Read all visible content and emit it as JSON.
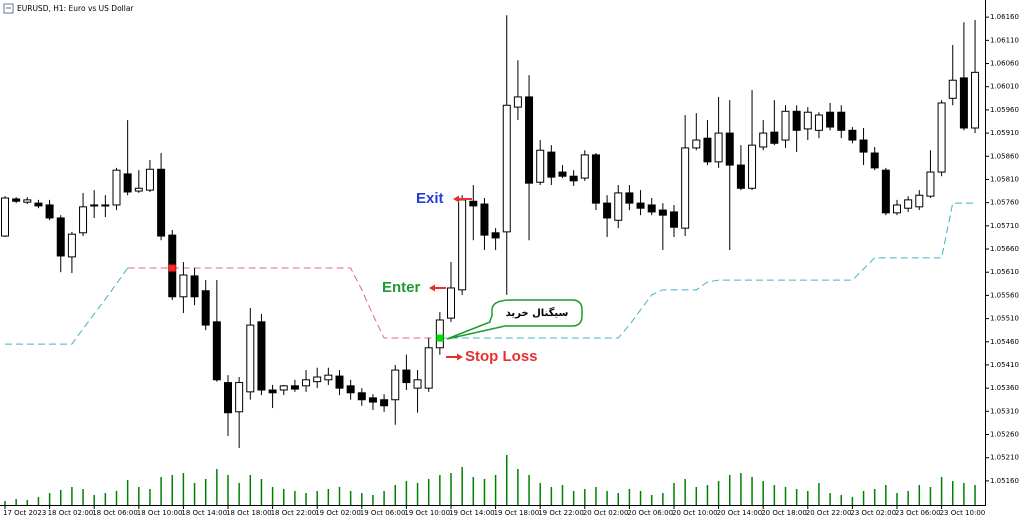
{
  "chart_data": {
    "type": "candlestick",
    "title": "EURUSD, H1:  Euro vs US Dollar",
    "categories": [
      "17 Oct 2023",
      null,
      null,
      null,
      "18 Oct 02:00",
      null,
      null,
      null,
      "18 Oct 06:00",
      null,
      null,
      null,
      "18 Oct 10:00",
      null,
      null,
      null,
      "18 Oct 14:00",
      null,
      null,
      null,
      "18 Oct 18:00",
      null,
      null,
      null,
      "18 Oct 22:00",
      null,
      null,
      null,
      "19 Oct 02:00",
      null,
      null,
      null,
      "19 Oct 06:00",
      null,
      null,
      null,
      "19 Oct 10:00",
      null,
      null,
      null,
      "19 Oct 14:00",
      null,
      null,
      null,
      "19 Oct 18:00",
      null,
      null,
      null,
      "19 Oct 22:00",
      null,
      null,
      null,
      "20 Oct 02:00",
      null,
      null,
      null,
      "20 Oct 06:00",
      null,
      null,
      null,
      "20 Oct 10:00",
      null,
      null,
      null,
      "20 Oct 14:00",
      null,
      null,
      null,
      "20 Oct 18:00",
      null,
      null,
      null,
      "20 Oct 22:00",
      null,
      null,
      null,
      "23 Oct 02:00",
      null,
      null,
      null,
      "23 Oct 06:00",
      null,
      null,
      null,
      "23 Oct 10:00",
      null,
      null,
      null
    ],
    "open": [
      1.05688,
      1.05768,
      1.05761,
      1.05759,
      1.05755,
      1.05727,
      1.05643,
      1.05695,
      1.05755,
      1.05753,
      1.05755,
      1.05822,
      1.05785,
      1.05787,
      1.05832,
      1.0569,
      1.05557,
      1.05602,
      1.0557,
      1.05503,
      1.05372,
      1.05309,
      1.05352,
      1.05503,
      1.05356,
      1.05356,
      1.05365,
      1.05365,
      1.05374,
      1.05378,
      1.05386,
      1.05365,
      1.0535,
      1.05339,
      1.05335,
      1.05335,
      1.05399,
      1.0536,
      1.0536,
      1.05447,
      1.05511,
      1.05572,
      1.05763,
      1.05757,
      1.05695,
      1.05697,
      1.05966,
      1.05988,
      1.05804,
      1.05869,
      1.05826,
      1.05817,
      1.05813,
      1.05863,
      1.05759,
      1.05722,
      1.05781,
      1.05759,
      1.05755,
      1.05744,
      1.0574,
      1.05705,
      1.05878,
      1.05899,
      1.05848,
      1.0591,
      1.05841,
      1.05791,
      1.0588,
      1.05912,
      1.05895,
      1.05957,
      1.05919,
      1.05916,
      1.05955,
      1.05955,
      1.05916,
      1.05895,
      1.05867,
      1.0583,
      1.05738,
      1.05748,
      1.05751,
      1.05774,
      1.05826,
      1.05985,
      1.06029,
      1.05921
    ],
    "high": [
      1.05774,
      1.05772,
      1.05772,
      1.05766,
      1.05766,
      1.05733,
      1.05697,
      1.05781,
      1.05787,
      1.05776,
      1.05835,
      1.05938,
      1.0583,
      1.05852,
      1.05867,
      1.05701,
      1.05632,
      1.05619,
      1.05593,
      1.05593,
      1.05388,
      1.05384,
      1.05533,
      1.0552,
      1.05367,
      1.05367,
      1.05378,
      1.05399,
      1.05404,
      1.05404,
      1.05399,
      1.05378,
      1.0536,
      1.05347,
      1.05347,
      1.0541,
      1.05432,
      1.05399,
      1.05468,
      1.05524,
      1.05632,
      1.05776,
      1.05798,
      1.0577,
      1.05705,
      1.06164,
      1.06067,
      1.06035,
      1.05895,
      1.05884,
      1.05841,
      1.0583,
      1.05873,
      1.05867,
      1.05776,
      1.05798,
      1.05798,
      1.05787,
      1.0577,
      1.05759,
      1.05755,
      1.05949,
      1.05953,
      1.05938,
      1.05988,
      1.05981,
      1.05884,
      1.06003,
      1.05938,
      1.05981,
      1.0597,
      1.0597,
      1.05966,
      1.05955,
      1.05975,
      1.0597,
      1.05923,
      1.05921,
      1.0588,
      1.05835,
      1.05766,
      1.05774,
      1.05787,
      1.05873,
      1.05981,
      1.061,
      1.06149,
      1.06154
    ],
    "low": [
      1.05686,
      1.05759,
      1.05757,
      1.05748,
      1.05722,
      1.0561,
      1.05608,
      1.05688,
      1.05727,
      1.05729,
      1.05744,
      1.05776,
      1.05781,
      1.05783,
      1.05679,
      1.0555,
      1.05522,
      1.05539,
      1.05485,
      1.05374,
      1.05257,
      1.05231,
      1.05335,
      1.05345,
      1.05317,
      1.05345,
      1.05352,
      1.05352,
      1.0536,
      1.05367,
      1.05345,
      1.05335,
      1.05322,
      1.05313,
      1.05309,
      1.05281,
      1.05356,
      1.05307,
      1.05352,
      1.05432,
      1.05503,
      1.05561,
      1.05679,
      1.05658,
      1.05658,
      1.05561,
      1.05938,
      1.05679,
      1.05798,
      1.05798,
      1.05813,
      1.05796,
      1.05807,
      1.05744,
      1.05686,
      1.05705,
      1.05744,
      1.05733,
      1.05733,
      1.05658,
      1.05686,
      1.05688,
      1.05873,
      1.05841,
      1.05835,
      1.05658,
      1.05787,
      1.05787,
      1.05873,
      1.05884,
      1.05878,
      1.05869,
      1.05895,
      1.05899,
      1.05916,
      1.05899,
      1.05888,
      1.05841,
      1.0583,
      1.05733,
      1.05733,
      1.0574,
      1.05744,
      1.0577,
      1.05817,
      1.0597,
      1.05916,
      1.0591
    ],
    "close": [
      1.0577,
      1.05763,
      1.05766,
      1.05753,
      1.05727,
      1.05645,
      1.05692,
      1.05751,
      1.05753,
      1.05755,
      1.0583,
      1.05783,
      1.05791,
      1.05832,
      1.05688,
      1.05557,
      1.05604,
      1.05557,
      1.05496,
      1.05378,
      1.05307,
      1.05372,
      1.05496,
      1.05356,
      1.0535,
      1.05365,
      1.05358,
      1.05378,
      1.05384,
      1.05388,
      1.0536,
      1.0535,
      1.05335,
      1.0533,
      1.05322,
      1.05399,
      1.05372,
      1.05378,
      1.05447,
      1.05507,
      1.05576,
      1.05766,
      1.05753,
      1.0569,
      1.05684,
      1.0597,
      1.05988,
      1.05802,
      1.05873,
      1.05815,
      1.05817,
      1.05807,
      1.05863,
      1.05759,
      1.05727,
      1.05781,
      1.05759,
      1.05748,
      1.0574,
      1.05733,
      1.05707,
      1.05878,
      1.05895,
      1.05848,
      1.0591,
      1.05841,
      1.05791,
      1.05884,
      1.0591,
      1.05888,
      1.05957,
      1.05916,
      1.05955,
      1.05949,
      1.05923,
      1.05916,
      1.05895,
      1.05869,
      1.05835,
      1.05738,
      1.05755,
      1.05766,
      1.05776,
      1.05826,
      1.05975,
      1.06024,
      1.05921,
      1.06041
    ],
    "volume": [
      400,
      600,
      500,
      800,
      1200,
      1500,
      1800,
      1600,
      1000,
      1200,
      1400,
      2500,
      1800,
      1600,
      2800,
      3000,
      3200,
      2200,
      2600,
      3600,
      3000,
      2200,
      3000,
      2600,
      1800,
      1600,
      1400,
      1200,
      1400,
      1600,
      1800,
      1400,
      1200,
      1000,
      1400,
      2000,
      2400,
      2200,
      2600,
      3000,
      3200,
      3800,
      2800,
      2600,
      3000,
      5000,
      3600,
      3000,
      2200,
      1800,
      2000,
      1400,
      1600,
      1800,
      1400,
      1200,
      1600,
      1400,
      1000,
      1200,
      2200,
      2600,
      1800,
      2000,
      2400,
      3000,
      3200,
      2800,
      2400,
      2000,
      1800,
      1600,
      1400,
      2200,
      1200,
      1000,
      800,
      1400,
      1600,
      2000,
      1200,
      1400,
      2000,
      1800,
      2800,
      2400,
      2200,
      2000
    ],
    "volume_color": "#008000",
    "volume_lim": [
      0,
      10000
    ],
    "up_color": "#ffffff",
    "down_color": "#000000",
    "outline_color": "#000000",
    "overlays": [
      {
        "color": "#40b4c4",
        "values": [
          1.05455,
          1.05455,
          1.05455,
          1.05455,
          1.05455,
          1.05455,
          1.05455,
          1.05488,
          1.0552,
          1.05552,
          1.05585,
          1.05619,
          null,
          null,
          null,
          null,
          null,
          null,
          null,
          null,
          null,
          null,
          null,
          null,
          null,
          null,
          null,
          null,
          null,
          null,
          null,
          null,
          null,
          null,
          null,
          null,
          null,
          null,
          null,
          1.05468,
          1.05468,
          1.05468,
          1.05468,
          1.05468,
          1.05468,
          1.05468,
          1.05468,
          1.05468,
          1.05468,
          1.05468,
          1.05468,
          1.05468,
          1.05468,
          1.05468,
          1.05468,
          1.05468,
          1.05496,
          1.05529,
          1.05561,
          1.05572,
          1.05572,
          1.05572,
          1.05572,
          1.05589,
          1.05593,
          1.05593,
          1.05593,
          1.05593,
          1.05593,
          1.05593,
          1.05593,
          1.05593,
          1.05593,
          1.05593,
          1.05593,
          1.05593,
          1.05593,
          1.05617,
          1.05641,
          1.05641,
          1.05641,
          1.05641,
          1.05641,
          1.05641,
          1.05641,
          1.05759,
          1.05759,
          1.05759
        ]
      },
      {
        "color": "#e8609a",
        "values": [
          null,
          null,
          null,
          null,
          null,
          null,
          null,
          null,
          null,
          null,
          null,
          1.05619,
          1.05619,
          1.05619,
          1.05619,
          1.05619,
          1.05619,
          1.05619,
          1.05619,
          1.05619,
          1.05619,
          1.05619,
          1.05619,
          1.05619,
          1.05619,
          1.05619,
          1.05619,
          1.05619,
          1.05619,
          1.05619,
          1.05619,
          1.05619,
          1.05572,
          1.05518,
          1.05468,
          1.05468,
          1.05468,
          1.05468,
          1.05468,
          1.05468,
          null,
          null,
          null,
          null,
          null,
          null,
          null,
          null,
          null,
          null,
          null,
          null,
          null,
          null,
          null,
          null,
          null,
          null,
          null,
          null,
          null,
          null,
          null,
          null,
          null,
          null,
          null,
          null,
          null,
          null,
          null,
          null,
          null,
          null,
          null,
          null,
          null,
          null,
          null,
          null,
          null,
          null,
          null,
          null,
          null,
          null,
          null,
          null
        ]
      }
    ],
    "markers": [
      {
        "index": 15,
        "value": 1.05619,
        "color": "#ff2020"
      },
      {
        "index": 39,
        "value": 1.05468,
        "color": "#00e000"
      }
    ],
    "annotations": {
      "exit": "Exit",
      "enter": "Enter",
      "stop_loss": "Stop Loss",
      "signal": "سیگنال خرید"
    },
    "ylim": [
      1.05108,
      1.06197
    ],
    "yticks": [
      {
        "value": 1.0616,
        "label": "1.06160"
      },
      {
        "value": 1.0611,
        "label": "1.06110"
      },
      {
        "value": 1.0606,
        "label": "1.06060"
      },
      {
        "value": 1.0601,
        "label": "1.06010"
      },
      {
        "value": 1.0596,
        "label": "1.05960"
      },
      {
        "value": 1.0591,
        "label": "1.05910"
      },
      {
        "value": 1.0586,
        "label": "1.05860"
      },
      {
        "value": 1.0581,
        "label": "1.05810"
      },
      {
        "value": 1.0576,
        "label": "1.05760"
      },
      {
        "value": 1.0571,
        "label": "1.05710"
      },
      {
        "value": 1.0566,
        "label": "1.05660"
      },
      {
        "value": 1.0561,
        "label": "1.05610"
      },
      {
        "value": 1.0556,
        "label": "1.05560"
      },
      {
        "value": 1.0551,
        "label": "1.05510"
      },
      {
        "value": 1.0546,
        "label": "1.05460"
      },
      {
        "value": 1.0541,
        "label": "1.05410"
      },
      {
        "value": 1.0536,
        "label": "1.05360"
      },
      {
        "value": 1.0531,
        "label": "1.05310"
      },
      {
        "value": 1.0526,
        "label": "1.05260"
      },
      {
        "value": 1.0521,
        "label": "1.05210"
      },
      {
        "value": 1.0516,
        "label": "1.05160"
      }
    ],
    "grid": false
  }
}
